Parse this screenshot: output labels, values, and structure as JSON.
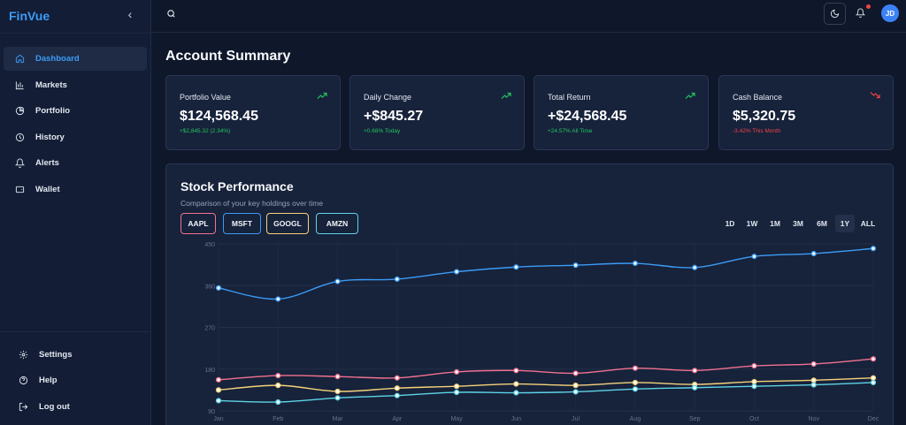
{
  "app": {
    "brand": "FinVue",
    "collapse_icon": "‹"
  },
  "sidebar": {
    "items": [
      {
        "label": "Dashboard",
        "icon": "home-icon",
        "active": true
      },
      {
        "label": "Markets",
        "icon": "bar-chart-icon"
      },
      {
        "label": "Portfolio",
        "icon": "pie-chart-icon"
      },
      {
        "label": "History",
        "icon": "clock-icon"
      },
      {
        "label": "Alerts",
        "icon": "bell-icon"
      },
      {
        "label": "Wallet",
        "icon": "wallet-icon"
      }
    ],
    "bottom_items": [
      {
        "label": "Settings",
        "icon": "gear-icon"
      },
      {
        "label": "Help",
        "icon": "help-icon"
      },
      {
        "label": "Log out",
        "icon": "logout-icon"
      }
    ]
  },
  "topbar": {
    "avatar_initials": "JD",
    "icons": [
      "search-icon",
      "moon-icon",
      "bell-icon"
    ]
  },
  "main": {
    "title": "Account Summary",
    "cards": [
      {
        "label": "Portfolio Value",
        "value": "$124,568.45",
        "sub": "+$2,845.32 (2.34%)",
        "trend": "up"
      },
      {
        "label": "Daily Change",
        "value": "+$845.27",
        "sub": "+0.68% Today",
        "trend": "up"
      },
      {
        "label": "Total Return",
        "value": "+$24,568.45",
        "sub": "+24.57% All Time",
        "trend": "up"
      },
      {
        "label": "Cash Balance",
        "value": "$5,320.75",
        "sub": "-3.42% This Month",
        "trend": "down"
      }
    ]
  },
  "chart_panel": {
    "title": "Stock Performance",
    "subtitle": "Comparison of your key holdings over time",
    "tickers": [
      {
        "label": "AAPL",
        "color": "#f0728f"
      },
      {
        "label": "MSFT",
        "color": "#3b9cf5"
      },
      {
        "label": "GOOGL",
        "color": "#f5d37a"
      },
      {
        "label": "AMZN",
        "color": "#5ed4e6"
      }
    ],
    "ranges": [
      "1D",
      "1W",
      "1M",
      "3M",
      "6M",
      "1Y",
      "ALL"
    ],
    "active_range": "1Y"
  },
  "chart_data": {
    "type": "line",
    "x": [
      "Jan",
      "Feb",
      "Mar",
      "Apr",
      "May",
      "Jun",
      "Jul",
      "Aug",
      "Sep",
      "Oct",
      "Nov",
      "Dec"
    ],
    "yticks": [
      90,
      180,
      270,
      360,
      450
    ],
    "ylim": [
      90,
      450
    ],
    "grid": true,
    "series": [
      {
        "name": "AAPL",
        "color": "#f0728f",
        "values": [
          157,
          166,
          164,
          161,
          174,
          177,
          171,
          182,
          177,
          187,
          191,
          202
        ]
      },
      {
        "name": "MSFT",
        "color": "#3b9cf5",
        "values": [
          355,
          331,
          369,
          374,
          390,
          400,
          404,
          408,
          399,
          423,
          429,
          440
        ]
      },
      {
        "name": "GOOGL",
        "color": "#f5d37a",
        "values": [
          135,
          145,
          132,
          139,
          143,
          148,
          145,
          151,
          147,
          153,
          156,
          161
        ]
      },
      {
        "name": "AMZN",
        "color": "#5ed4e6",
        "values": [
          112,
          109,
          118,
          123,
          130,
          129,
          131,
          137,
          140,
          143,
          146,
          151
        ]
      }
    ]
  }
}
